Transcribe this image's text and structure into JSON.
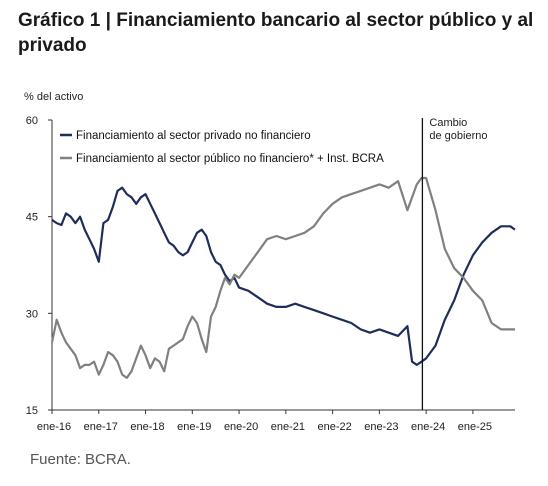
{
  "title": "Gráfico 1 | Financiamiento bancario al sector público y al privado",
  "source": "Fuente: BCRA.",
  "chart_data": {
    "type": "line",
    "title": "Gráfico 1 | Financiamiento bancario al sector público y al privado",
    "ylabel": "% del activo",
    "xlabel": "",
    "ylim": [
      15,
      60
    ],
    "yticks": [
      15,
      30,
      45,
      60
    ],
    "xlim": [
      2016.0,
      2025.9
    ],
    "xtick_labels": [
      "ene-16",
      "ene-17",
      "ene-18",
      "ene-19",
      "ene-20",
      "ene-21",
      "ene-22",
      "ene-23",
      "ene-24",
      "ene-25"
    ],
    "xticks": [
      2016,
      2017,
      2018,
      2019,
      2020,
      2021,
      2022,
      2023,
      2024,
      2025
    ],
    "grid": false,
    "legend": "top-left",
    "annotation": {
      "label_line1": "Cambio",
      "label_line2": "de gobierno",
      "x": 2023.92
    },
    "series": [
      {
        "name": "Financiamiento al sector privado no financiero",
        "color": "#1f2d5a",
        "x": [
          2016.0,
          2016.1,
          2016.2,
          2016.3,
          2016.4,
          2016.5,
          2016.6,
          2016.7,
          2016.8,
          2016.9,
          2017.0,
          2017.1,
          2017.2,
          2017.3,
          2017.4,
          2017.5,
          2017.6,
          2017.7,
          2017.8,
          2017.9,
          2018.0,
          2018.1,
          2018.2,
          2018.3,
          2018.4,
          2018.5,
          2018.6,
          2018.7,
          2018.8,
          2018.9,
          2019.0,
          2019.1,
          2019.2,
          2019.3,
          2019.4,
          2019.5,
          2019.6,
          2019.7,
          2019.8,
          2019.9,
          2020.0,
          2020.2,
          2020.4,
          2020.6,
          2020.8,
          2021.0,
          2021.2,
          2021.4,
          2021.6,
          2021.8,
          2022.0,
          2022.2,
          2022.4,
          2022.6,
          2022.8,
          2023.0,
          2023.2,
          2023.4,
          2023.6,
          2023.7,
          2023.8,
          2023.9,
          2024.0,
          2024.2,
          2024.4,
          2024.6,
          2024.8,
          2025.0,
          2025.2,
          2025.4,
          2025.6,
          2025.8,
          2025.9
        ],
        "values": [
          44.5,
          44.0,
          43.7,
          45.5,
          45.0,
          44.0,
          45.0,
          43.0,
          41.5,
          40.0,
          38.0,
          44.0,
          44.5,
          46.5,
          49.0,
          49.5,
          48.5,
          48.0,
          47.0,
          48.0,
          48.5,
          47.0,
          45.5,
          44.0,
          42.5,
          41.0,
          40.5,
          39.5,
          39.0,
          39.5,
          41.0,
          42.5,
          43.0,
          42.0,
          39.5,
          38.0,
          37.5,
          36.0,
          35.0,
          35.5,
          34.0,
          33.5,
          32.5,
          31.5,
          31.0,
          31.0,
          31.5,
          31.0,
          30.5,
          30.0,
          29.5,
          29.0,
          28.5,
          27.5,
          27.0,
          27.5,
          27.0,
          26.5,
          28.0,
          22.5,
          22.0,
          22.5,
          23.0,
          25.0,
          29.0,
          32.0,
          36.0,
          39.0,
          41.0,
          42.5,
          43.5,
          43.5,
          43.0
        ]
      },
      {
        "name": "Financiamiento al sector público no financiero* + Inst. BCRA",
        "color": "#808080",
        "x": [
          2016.0,
          2016.1,
          2016.2,
          2016.3,
          2016.4,
          2016.5,
          2016.6,
          2016.7,
          2016.8,
          2016.9,
          2017.0,
          2017.1,
          2017.2,
          2017.3,
          2017.4,
          2017.5,
          2017.6,
          2017.7,
          2017.8,
          2017.9,
          2018.0,
          2018.1,
          2018.2,
          2018.3,
          2018.4,
          2018.5,
          2018.6,
          2018.7,
          2018.8,
          2018.9,
          2019.0,
          2019.1,
          2019.2,
          2019.3,
          2019.4,
          2019.5,
          2019.6,
          2019.7,
          2019.8,
          2019.9,
          2020.0,
          2020.2,
          2020.4,
          2020.6,
          2020.8,
          2021.0,
          2021.2,
          2021.4,
          2021.6,
          2021.8,
          2022.0,
          2022.2,
          2022.4,
          2022.6,
          2022.8,
          2023.0,
          2023.2,
          2023.4,
          2023.6,
          2023.7,
          2023.8,
          2023.9,
          2024.0,
          2024.2,
          2024.4,
          2024.6,
          2024.8,
          2025.0,
          2025.2,
          2025.4,
          2025.6,
          2025.8,
          2025.9
        ],
        "values": [
          25.5,
          29.0,
          27.0,
          25.5,
          24.5,
          23.5,
          21.5,
          22.0,
          22.0,
          22.5,
          20.5,
          22.0,
          24.0,
          23.5,
          22.5,
          20.5,
          20.0,
          21.0,
          23.0,
          25.0,
          23.5,
          21.5,
          23.0,
          22.5,
          21.0,
          24.5,
          25.0,
          25.5,
          26.0,
          28.0,
          29.5,
          28.5,
          26.0,
          24.0,
          29.5,
          31.0,
          33.5,
          35.5,
          34.5,
          36.0,
          35.5,
          37.5,
          39.5,
          41.5,
          42.0,
          41.5,
          42.0,
          42.5,
          43.5,
          45.5,
          47.0,
          48.0,
          48.5,
          49.0,
          49.5,
          50.0,
          49.5,
          50.5,
          46.0,
          48.0,
          50.0,
          51.0,
          51.0,
          46.0,
          40.0,
          37.0,
          35.5,
          33.5,
          32.0,
          28.5,
          27.5,
          27.5,
          27.5
        ]
      }
    ]
  }
}
